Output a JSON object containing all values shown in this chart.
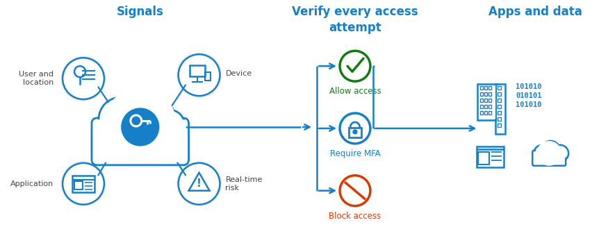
{
  "bg_color": "#ffffff",
  "blue": "#1580c8",
  "green": "#107c10",
  "red": "#d83b01",
  "title_signals": "Signals",
  "title_verify": "Verify every access\nattempt",
  "title_apps": "Apps and data",
  "label_user": "User and\nlocation",
  "label_device": "Device",
  "label_application": "Application",
  "label_realtime": "Real-time\nrisk",
  "label_allow": "Allow access",
  "label_mfa": "Require MFA",
  "label_block": "Block access",
  "binary_text": "101010\n010101\n101010"
}
